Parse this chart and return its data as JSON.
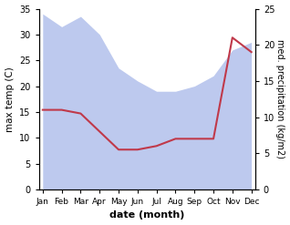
{
  "months": [
    "Jan",
    "Feb",
    "Mar",
    "Apr",
    "May",
    "Jun",
    "Jul",
    "Aug",
    "Sep",
    "Oct",
    "Nov",
    "Dec"
  ],
  "month_indices": [
    0,
    1,
    2,
    3,
    4,
    5,
    6,
    7,
    8,
    9,
    10,
    11
  ],
  "max_temp": [
    34,
    31.5,
    33.5,
    30,
    23.5,
    21,
    19,
    19,
    20,
    22,
    27,
    28.5
  ],
  "med_precip_right": [
    11,
    11,
    10.5,
    8,
    5.5,
    5.5,
    6,
    7,
    7,
    7,
    21,
    19
  ],
  "temp_color_fill": "#bdc9ee",
  "precip_color": "#c0394a",
  "precip_linewidth": 1.5,
  "temp_ylim": [
    0,
    35
  ],
  "precip_ylim": [
    0,
    25
  ],
  "temp_yticks": [
    0,
    5,
    10,
    15,
    20,
    25,
    30,
    35
  ],
  "precip_yticks": [
    0,
    5,
    10,
    15,
    20,
    25
  ],
  "xlabel": "date (month)",
  "ylabel_left": "max temp (C)",
  "ylabel_right": "med. precipitation (kg/m2)",
  "background_color": "#ffffff"
}
